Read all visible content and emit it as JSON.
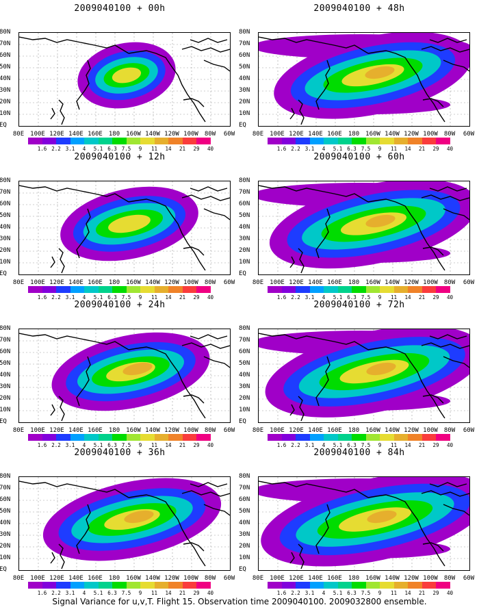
{
  "panels": [
    {
      "title": "2009040100 + 00h",
      "intensity": 0.55,
      "extent": 0.35
    },
    {
      "title": "2009040100 + 12h",
      "intensity": 0.7,
      "extent": 0.55
    },
    {
      "title": "2009040100 + 24h",
      "intensity": 0.75,
      "extent": 0.65
    },
    {
      "title": "2009040100 + 36h",
      "intensity": 0.75,
      "extent": 0.75
    },
    {
      "title": "2009040100 + 48h",
      "intensity": 0.75,
      "extent": 0.85
    },
    {
      "title": "2009040100 + 60h",
      "intensity": 0.75,
      "extent": 0.9
    },
    {
      "title": "2009040100 + 72h",
      "intensity": 0.8,
      "extent": 0.95
    },
    {
      "title": "2009040100 + 84h",
      "intensity": 0.85,
      "extent": 1.0
    }
  ],
  "lat_labels": [
    "80N",
    "70N",
    "60N",
    "50N",
    "40N",
    "30N",
    "20N",
    "10N",
    "EQ"
  ],
  "lon_labels": [
    "80E",
    "100E",
    "120E",
    "140E",
    "160E",
    "180",
    "160W",
    "140W",
    "120W",
    "100W",
    "80W",
    "60W"
  ],
  "colorbar": {
    "labels": [
      "1.6",
      "2.2",
      "3.1",
      "4",
      "5.1",
      "6.3",
      "7.5",
      "9",
      "11",
      "14",
      "21",
      "29",
      "40"
    ],
    "colors": [
      "#a000c8",
      "#8200dc",
      "#1e3cff",
      "#00a0ff",
      "#00c8c8",
      "#00d28c",
      "#00dc00",
      "#a0e632",
      "#e6dc32",
      "#e6af2d",
      "#f08228",
      "#fa3c3c",
      "#f00082"
    ]
  },
  "caption": "Signal Variance for u,v,T. Flight 15. Observation time 2009040100. 2009032800 ensemble."
}
